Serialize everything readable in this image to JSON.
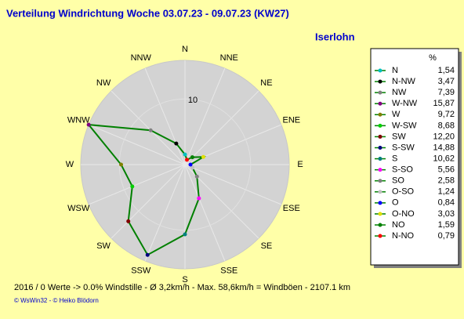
{
  "chart_data": {
    "type": "radar",
    "title": "Verteilung Windrichtung   Woche 03.07.23 - 09.07.23 (KW27)",
    "subtitle": "Iserlohn",
    "categories": [
      "N",
      "NNE",
      "NE",
      "ENE",
      "E",
      "ESE",
      "SE",
      "SSE",
      "S",
      "SSW",
      "SW",
      "WSW",
      "W",
      "WNW",
      "NW",
      "NNW"
    ],
    "legend_title": "%",
    "names": [
      "N",
      "N-NW",
      "NW",
      "W-NW",
      "W",
      "W-SW",
      "SW",
      "S-SW",
      "S",
      "S-SO",
      "SO",
      "O-SO",
      "O",
      "O-NO",
      "NO",
      "N-NO"
    ],
    "values": [
      1.54,
      3.47,
      7.39,
      15.87,
      9.72,
      8.68,
      12.2,
      14.88,
      10.62,
      5.56,
      2.58,
      1.24,
      0.84,
      3.03,
      1.59,
      0.79
    ],
    "value_labels": [
      "1,54",
      "3,47",
      "7,39",
      "15,87",
      "9,72",
      "8,68",
      "12,20",
      "14,88",
      "10,62",
      "5,56",
      "2,58",
      "1,24",
      "0,84",
      "3,03",
      "1,59",
      "0,79"
    ],
    "colors": [
      "#00c0c0",
      "#000000",
      "#808080",
      "#800080",
      "#808000",
      "#00d000",
      "#800000",
      "#000080",
      "#008080",
      "#ff00ff",
      "#808080",
      "#c0c0c0",
      "#0000ff",
      "#e0e000",
      "#008000",
      "#ff0000"
    ],
    "line_color": "#008000",
    "rlim": [
      0,
      15.87
    ],
    "rticks": [
      10
    ],
    "footer": "2016 / 0 Werte  -> 0.0% Windstille   -   Ø 3,2km/h  -  Max. 58,6km/h = Windböen   -   2107.1 km",
    "credit": "© WsWin32  - © Heiko Blödorn"
  }
}
